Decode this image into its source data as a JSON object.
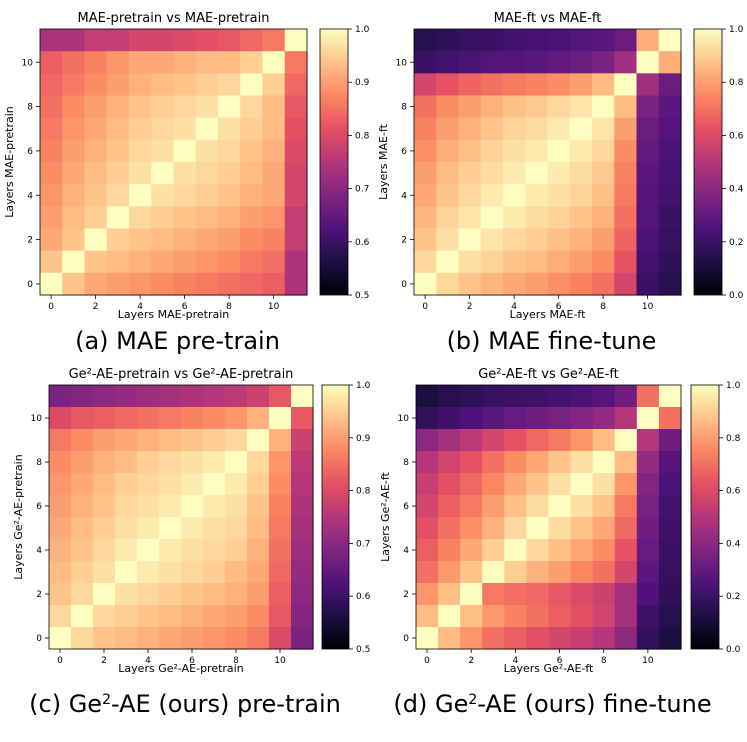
{
  "chart_data": [
    {
      "type": "heatmap",
      "title": "MAE-pretrain vs MAE-pretrain",
      "xlabel": "Layers MAE-pretrain",
      "ylabel": "Layers MAE-pretrain",
      "caption": "(a) MAE pre-train",
      "x_ticks": [
        "0",
        "2",
        "4",
        "6",
        "8",
        "10"
      ],
      "y_ticks": [
        "0",
        "2",
        "4",
        "6",
        "8",
        "10"
      ],
      "colorbar_range": [
        0.5,
        1.0
      ],
      "colorbar_ticks": [
        "0.5",
        "0.6",
        "0.7",
        "0.8",
        "0.9",
        "1.0"
      ],
      "z_rows_top_to_bottom": [
        [
          0.74,
          0.74,
          0.77,
          0.77,
          0.79,
          0.79,
          0.8,
          0.81,
          0.82,
          0.84,
          0.86,
          1.0
        ],
        [
          0.83,
          0.85,
          0.87,
          0.89,
          0.91,
          0.91,
          0.92,
          0.93,
          0.93,
          0.95,
          1.0,
          0.86
        ],
        [
          0.84,
          0.86,
          0.88,
          0.9,
          0.92,
          0.93,
          0.94,
          0.95,
          0.96,
          1.0,
          0.95,
          0.84
        ],
        [
          0.85,
          0.88,
          0.9,
          0.92,
          0.94,
          0.95,
          0.96,
          0.97,
          1.0,
          0.96,
          0.93,
          0.82
        ],
        [
          0.86,
          0.89,
          0.91,
          0.93,
          0.95,
          0.96,
          0.97,
          1.0,
          0.97,
          0.95,
          0.93,
          0.81
        ],
        [
          0.87,
          0.9,
          0.92,
          0.94,
          0.96,
          0.97,
          1.0,
          0.97,
          0.96,
          0.94,
          0.92,
          0.8
        ],
        [
          0.88,
          0.91,
          0.93,
          0.95,
          0.97,
          1.0,
          0.97,
          0.96,
          0.95,
          0.93,
          0.91,
          0.79
        ],
        [
          0.89,
          0.92,
          0.94,
          0.96,
          1.0,
          0.97,
          0.96,
          0.95,
          0.94,
          0.92,
          0.91,
          0.79
        ],
        [
          0.9,
          0.93,
          0.95,
          1.0,
          0.96,
          0.95,
          0.94,
          0.93,
          0.92,
          0.9,
          0.89,
          0.77
        ],
        [
          0.91,
          0.94,
          1.0,
          0.95,
          0.94,
          0.93,
          0.92,
          0.91,
          0.9,
          0.88,
          0.87,
          0.77
        ],
        [
          0.94,
          1.0,
          0.94,
          0.93,
          0.92,
          0.91,
          0.9,
          0.89,
          0.88,
          0.86,
          0.85,
          0.74
        ],
        [
          1.0,
          0.94,
          0.91,
          0.9,
          0.89,
          0.88,
          0.87,
          0.86,
          0.85,
          0.84,
          0.83,
          0.74
        ]
      ]
    },
    {
      "type": "heatmap",
      "title": "MAE-ft vs MAE-ft",
      "xlabel": "Layers MAE-ft",
      "ylabel": "Layers MAE-ft",
      "caption": "(b) MAE fine-tune",
      "x_ticks": [
        "0",
        "2",
        "4",
        "6",
        "8",
        "10"
      ],
      "y_ticks": [
        "0",
        "2",
        "4",
        "6",
        "8",
        "10"
      ],
      "colorbar_range": [
        0.0,
        1.0
      ],
      "colorbar_ticks": [
        "0.0",
        "0.2",
        "0.4",
        "0.6",
        "0.8",
        "1.0"
      ],
      "z_rows_top_to_bottom": [
        [
          0.15,
          0.17,
          0.19,
          0.2,
          0.22,
          0.23,
          0.24,
          0.26,
          0.28,
          0.32,
          0.83,
          1.0
        ],
        [
          0.2,
          0.22,
          0.24,
          0.26,
          0.27,
          0.28,
          0.3,
          0.32,
          0.36,
          0.45,
          1.0,
          0.83
        ],
        [
          0.58,
          0.63,
          0.67,
          0.7,
          0.72,
          0.74,
          0.76,
          0.8,
          0.86,
          1.0,
          0.45,
          0.32
        ],
        [
          0.7,
          0.76,
          0.8,
          0.84,
          0.87,
          0.89,
          0.92,
          0.95,
          1.0,
          0.86,
          0.36,
          0.28
        ],
        [
          0.74,
          0.8,
          0.84,
          0.88,
          0.91,
          0.93,
          0.96,
          1.0,
          0.95,
          0.8,
          0.32,
          0.26
        ],
        [
          0.77,
          0.83,
          0.87,
          0.91,
          0.94,
          0.96,
          1.0,
          0.96,
          0.92,
          0.76,
          0.3,
          0.24
        ],
        [
          0.8,
          0.86,
          0.9,
          0.93,
          0.96,
          1.0,
          0.96,
          0.93,
          0.89,
          0.74,
          0.28,
          0.23
        ],
        [
          0.82,
          0.88,
          0.92,
          0.96,
          1.0,
          0.96,
          0.94,
          0.91,
          0.87,
          0.72,
          0.27,
          0.22
        ],
        [
          0.85,
          0.91,
          0.95,
          1.0,
          0.96,
          0.93,
          0.91,
          0.88,
          0.84,
          0.7,
          0.26,
          0.2
        ],
        [
          0.88,
          0.94,
          1.0,
          0.95,
          0.92,
          0.9,
          0.87,
          0.84,
          0.8,
          0.67,
          0.24,
          0.19
        ],
        [
          0.92,
          1.0,
          0.94,
          0.91,
          0.88,
          0.86,
          0.83,
          0.8,
          0.76,
          0.63,
          0.22,
          0.17
        ],
        [
          1.0,
          0.92,
          0.88,
          0.85,
          0.82,
          0.8,
          0.77,
          0.74,
          0.7,
          0.58,
          0.2,
          0.15
        ]
      ]
    },
    {
      "type": "heatmap",
      "title": "Ge²-AE-pretrain vs Ge²-AE-pretrain",
      "xlabel": "Layers Ge²-AE-pretrain",
      "ylabel": "Layers Ge²-AE-pretrain",
      "caption_pre": "(c) Ge",
      "caption_sup": "2",
      "caption_post": "-AE (ours) pre-train",
      "x_ticks": [
        "0",
        "2",
        "4",
        "6",
        "8",
        "10"
      ],
      "y_ticks": [
        "0",
        "2",
        "4",
        "6",
        "8",
        "10"
      ],
      "colorbar_range": [
        0.5,
        1.0
      ],
      "colorbar_ticks": [
        "0.5",
        "0.6",
        "0.7",
        "0.8",
        "0.9",
        "1.0"
      ],
      "z_rows_top_to_bottom": [
        [
          0.68,
          0.69,
          0.7,
          0.71,
          0.72,
          0.73,
          0.74,
          0.75,
          0.76,
          0.78,
          0.82,
          1.0
        ],
        [
          0.8,
          0.82,
          0.83,
          0.84,
          0.85,
          0.86,
          0.87,
          0.88,
          0.89,
          0.92,
          1.0,
          0.82
        ],
        [
          0.86,
          0.88,
          0.9,
          0.91,
          0.92,
          0.93,
          0.94,
          0.95,
          0.96,
          1.0,
          0.92,
          0.78
        ],
        [
          0.88,
          0.9,
          0.92,
          0.93,
          0.95,
          0.96,
          0.97,
          0.98,
          1.0,
          0.96,
          0.89,
          0.76
        ],
        [
          0.89,
          0.91,
          0.93,
          0.95,
          0.96,
          0.97,
          0.98,
          1.0,
          0.98,
          0.95,
          0.88,
          0.75
        ],
        [
          0.9,
          0.92,
          0.94,
          0.96,
          0.97,
          0.98,
          1.0,
          0.98,
          0.97,
          0.94,
          0.87,
          0.74
        ],
        [
          0.91,
          0.93,
          0.95,
          0.97,
          0.98,
          1.0,
          0.98,
          0.97,
          0.96,
          0.93,
          0.86,
          0.73
        ],
        [
          0.92,
          0.94,
          0.96,
          0.98,
          1.0,
          0.98,
          0.97,
          0.96,
          0.95,
          0.92,
          0.85,
          0.72
        ],
        [
          0.93,
          0.95,
          0.97,
          1.0,
          0.98,
          0.97,
          0.96,
          0.95,
          0.93,
          0.91,
          0.84,
          0.71
        ],
        [
          0.94,
          0.96,
          1.0,
          0.97,
          0.96,
          0.95,
          0.94,
          0.93,
          0.92,
          0.9,
          0.83,
          0.7
        ],
        [
          0.96,
          1.0,
          0.96,
          0.95,
          0.94,
          0.93,
          0.92,
          0.91,
          0.9,
          0.88,
          0.82,
          0.69
        ],
        [
          1.0,
          0.96,
          0.94,
          0.93,
          0.92,
          0.91,
          0.9,
          0.89,
          0.88,
          0.86,
          0.8,
          0.68
        ]
      ]
    },
    {
      "type": "heatmap",
      "title": "Ge²-AE-ft vs Ge²-AE-ft",
      "xlabel": "Layers Ge²-AE-ft",
      "ylabel": "Layers Ge²-AE-ft",
      "caption_pre": "(d) Ge",
      "caption_sup": "2",
      "caption_post": "-AE (ours) fine-tune",
      "x_ticks": [
        "0",
        "2",
        "4",
        "6",
        "8",
        "10"
      ],
      "y_ticks": [
        "0",
        "2",
        "4",
        "6",
        "8",
        "10"
      ],
      "colorbar_range": [
        0.0,
        1.0
      ],
      "colorbar_ticks": [
        "0.0",
        "0.2",
        "0.4",
        "0.6",
        "0.8",
        "1.0"
      ],
      "z_rows_top_to_bottom": [
        [
          0.12,
          0.15,
          0.17,
          0.19,
          0.2,
          0.21,
          0.22,
          0.24,
          0.27,
          0.33,
          0.7,
          1.0
        ],
        [
          0.18,
          0.21,
          0.25,
          0.28,
          0.31,
          0.33,
          0.35,
          0.38,
          0.42,
          0.5,
          1.0,
          0.7
        ],
        [
          0.4,
          0.46,
          0.52,
          0.58,
          0.63,
          0.68,
          0.72,
          0.78,
          0.86,
          1.0,
          0.5,
          0.33
        ],
        [
          0.5,
          0.57,
          0.63,
          0.7,
          0.76,
          0.82,
          0.88,
          0.94,
          1.0,
          0.86,
          0.42,
          0.27
        ],
        [
          0.55,
          0.62,
          0.68,
          0.75,
          0.82,
          0.88,
          0.94,
          1.0,
          0.94,
          0.78,
          0.38,
          0.24
        ],
        [
          0.58,
          0.66,
          0.72,
          0.8,
          0.87,
          0.93,
          1.0,
          0.94,
          0.88,
          0.72,
          0.35,
          0.22
        ],
        [
          0.62,
          0.7,
          0.77,
          0.84,
          0.92,
          1.0,
          0.93,
          0.88,
          0.82,
          0.68,
          0.33,
          0.21
        ],
        [
          0.66,
          0.74,
          0.82,
          0.9,
          1.0,
          0.92,
          0.87,
          0.82,
          0.76,
          0.63,
          0.31,
          0.2
        ],
        [
          0.7,
          0.79,
          0.88,
          1.0,
          0.9,
          0.84,
          0.8,
          0.75,
          0.7,
          0.58,
          0.28,
          0.19
        ],
        [
          0.78,
          0.87,
          1.0,
          0.72,
          0.7,
          0.68,
          0.64,
          0.6,
          0.56,
          0.46,
          0.25,
          0.17
        ],
        [
          0.86,
          1.0,
          0.87,
          0.79,
          0.74,
          0.7,
          0.66,
          0.62,
          0.57,
          0.46,
          0.21,
          0.15
        ],
        [
          1.0,
          0.86,
          0.78,
          0.7,
          0.66,
          0.62,
          0.58,
          0.55,
          0.5,
          0.4,
          0.18,
          0.12
        ]
      ]
    }
  ]
}
